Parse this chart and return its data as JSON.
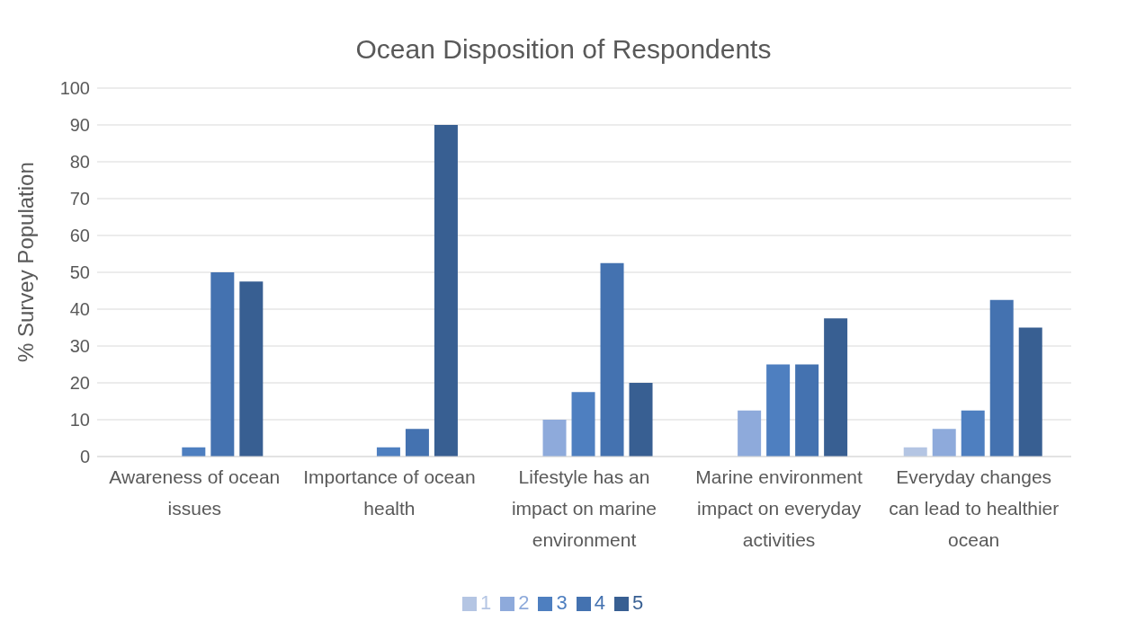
{
  "chart_data": {
    "type": "bar",
    "title": "Ocean Disposition of Respondents",
    "ylabel": "% Survey Population",
    "categories": [
      "Awareness of ocean issues",
      "Importance of ocean health",
      "Lifestyle has an impact on marine environment",
      "Marine environment impact on everyday activities",
      "Everyday changes can lead to healthier ocean"
    ],
    "series": [
      {
        "name": "1",
        "color": "#b4c5e3",
        "values": [
          0,
          0,
          0,
          0,
          2.5
        ]
      },
      {
        "name": "2",
        "color": "#8eaadb",
        "values": [
          0,
          0,
          10,
          12.5,
          7.5
        ]
      },
      {
        "name": "3",
        "color": "#4e7fc0",
        "values": [
          2.5,
          2.5,
          17.5,
          25,
          12.5
        ]
      },
      {
        "name": "4",
        "color": "#4472b0",
        "values": [
          50,
          7.5,
          52.5,
          25,
          42.5
        ]
      },
      {
        "name": "5",
        "color": "#385f92",
        "values": [
          47.5,
          90,
          20,
          37.5,
          35
        ]
      }
    ],
    "ylim": [
      0,
      100
    ],
    "yticks": [
      0,
      10,
      20,
      30,
      40,
      50,
      60,
      70,
      80,
      90,
      100
    ],
    "grid": "y",
    "legend": "bottom"
  }
}
